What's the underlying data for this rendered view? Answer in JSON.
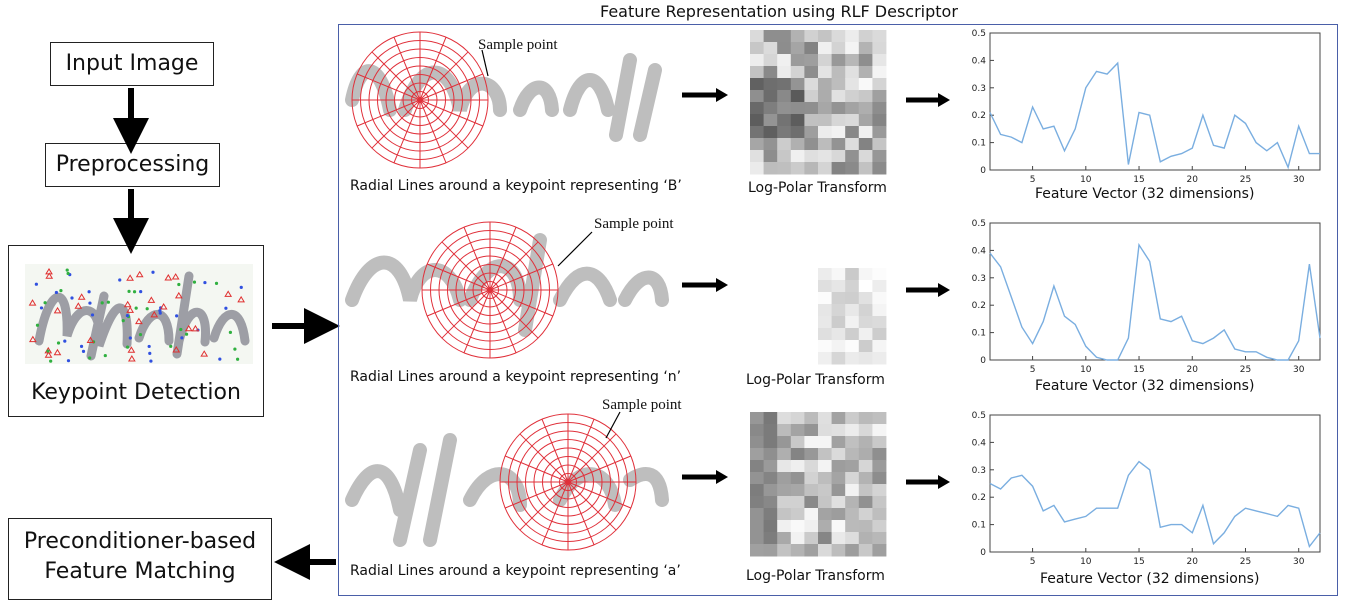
{
  "flow": {
    "input": "Input Image",
    "preprocess": "Preprocessing",
    "keypoint": "Keypoint Detection",
    "matching_line1": "Preconditioner-based",
    "matching_line2": "Feature Matching"
  },
  "panel": {
    "title": "Feature Representation using RLF Descriptor",
    "sample_label": "Sample point",
    "logpolar_label": "Log-Polar Transform",
    "vector_label": "Feature Vector (32 dimensions)",
    "rows": [
      {
        "caption": "Radial Lines around a keypoint representing ‘B’"
      },
      {
        "caption": "Radial Lines around a keypoint representing ‘n’"
      },
      {
        "caption": "Radial Lines around a keypoint representing ‘a’"
      }
    ]
  },
  "chart_data": [
    {
      "type": "line",
      "x": [
        1,
        2,
        3,
        4,
        5,
        6,
        7,
        8,
        9,
        10,
        11,
        12,
        13,
        14,
        15,
        16,
        17,
        18,
        19,
        20,
        21,
        22,
        23,
        24,
        25,
        26,
        27,
        28,
        29,
        30,
        31,
        32
      ],
      "values": [
        0.21,
        0.13,
        0.12,
        0.1,
        0.23,
        0.15,
        0.16,
        0.07,
        0.15,
        0.3,
        0.36,
        0.35,
        0.39,
        0.02,
        0.21,
        0.2,
        0.03,
        0.05,
        0.06,
        0.08,
        0.2,
        0.09,
        0.08,
        0.2,
        0.17,
        0.1,
        0.07,
        0.1,
        0.01,
        0.16,
        0.06,
        0.06
      ],
      "ylim": [
        0,
        0.5
      ],
      "xticks": [
        5,
        10,
        15,
        20,
        25,
        30
      ],
      "yticks": [
        0,
        0.1,
        0.2,
        0.3,
        0.4,
        0.5
      ],
      "ytick_labels": [
        "0",
        "0.1",
        "0.2",
        "0.3",
        "0.4",
        "0.5"
      ]
    },
    {
      "type": "line",
      "x": [
        1,
        2,
        3,
        4,
        5,
        6,
        7,
        8,
        9,
        10,
        11,
        12,
        13,
        14,
        15,
        16,
        17,
        18,
        19,
        20,
        21,
        22,
        23,
        24,
        25,
        26,
        27,
        28,
        29,
        30,
        31,
        32
      ],
      "values": [
        0.39,
        0.34,
        0.23,
        0.12,
        0.06,
        0.14,
        0.27,
        0.16,
        0.13,
        0.05,
        0.01,
        0.0,
        0.0,
        0.08,
        0.42,
        0.36,
        0.15,
        0.14,
        0.16,
        0.07,
        0.06,
        0.08,
        0.11,
        0.04,
        0.03,
        0.03,
        0.01,
        0.0,
        0.0,
        0.07,
        0.35,
        0.08
      ],
      "ylim": [
        0,
        0.5
      ],
      "xticks": [
        5,
        10,
        15,
        20,
        25,
        30
      ],
      "yticks": [
        0,
        0.1,
        0.2,
        0.3,
        0.4,
        0.5
      ],
      "ytick_labels": [
        "0",
        "0.1",
        "0.2",
        "0.3",
        "0.4",
        "0.5"
      ]
    },
    {
      "type": "line",
      "x": [
        1,
        2,
        3,
        4,
        5,
        6,
        7,
        8,
        9,
        10,
        11,
        12,
        13,
        14,
        15,
        16,
        17,
        18,
        19,
        20,
        21,
        22,
        23,
        24,
        25,
        26,
        27,
        28,
        29,
        30,
        31,
        32
      ],
      "values": [
        0.25,
        0.23,
        0.27,
        0.28,
        0.24,
        0.15,
        0.17,
        0.11,
        0.12,
        0.13,
        0.16,
        0.16,
        0.16,
        0.28,
        0.33,
        0.3,
        0.09,
        0.1,
        0.1,
        0.07,
        0.17,
        0.03,
        0.07,
        0.13,
        0.16,
        0.15,
        0.14,
        0.13,
        0.17,
        0.16,
        0.02,
        0.07
      ],
      "ylim": [
        0,
        0.5
      ],
      "xticks": [
        5,
        10,
        15,
        20,
        25,
        30
      ],
      "yticks": [
        0,
        0.1,
        0.2,
        0.3,
        0.4,
        0.5
      ],
      "ytick_labels": [
        "0",
        "0.1",
        "0.2",
        "0.3",
        "0.4",
        "0.5"
      ]
    }
  ],
  "colors": {
    "series": "#7aaee0",
    "radial": "#e0303a",
    "frame": "#4a5fa8"
  }
}
